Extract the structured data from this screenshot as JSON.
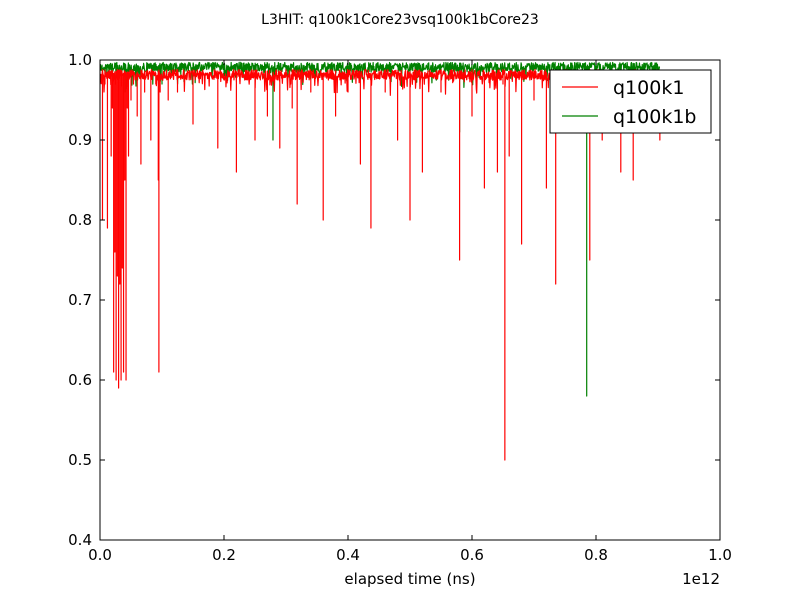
{
  "chart_data": {
    "type": "line",
    "title": "L3HIT: q100k1Core23vsq100k1bCore23",
    "xlabel": "elapsed time (ns)",
    "ylabel": "",
    "x_offset_label": "1e12",
    "xlim": [
      0.0,
      1.0
    ],
    "ylim": [
      0.4,
      1.0
    ],
    "x_ticks": [
      0.0,
      0.2,
      0.4,
      0.6,
      0.8,
      1.0
    ],
    "x_tick_labels": [
      "0.0",
      "0.2",
      "0.4",
      "0.6",
      "0.8",
      "1.0"
    ],
    "y_ticks": [
      0.4,
      0.5,
      0.6,
      0.7,
      0.8,
      0.9,
      1.0
    ],
    "y_tick_labels": [
      "0.4",
      "0.5",
      "0.6",
      "0.7",
      "0.8",
      "0.9",
      "1.0"
    ],
    "grid": false,
    "legend_position": "top-right",
    "colors": {
      "q100k1": "#ff0000",
      "q100k1b": "#008000"
    },
    "series": [
      {
        "name": "q100k1",
        "color": "#ff0000",
        "x_range": [
          0.0,
          0.903
        ],
        "baseline": [
          0.975,
          0.988
        ],
        "x": [
          0.0,
          0.004,
          0.008,
          0.012,
          0.015,
          0.018,
          0.02,
          0.022,
          0.024,
          0.026,
          0.028,
          0.03,
          0.032,
          0.034,
          0.036,
          0.038,
          0.04,
          0.042,
          0.044,
          0.046,
          0.05,
          0.054,
          0.06,
          0.066,
          0.072,
          0.082,
          0.09,
          0.094,
          0.095,
          0.097,
          0.11,
          0.125,
          0.15,
          0.19,
          0.22,
          0.25,
          0.27,
          0.29,
          0.31,
          0.318,
          0.34,
          0.36,
          0.38,
          0.4,
          0.42,
          0.437,
          0.46,
          0.48,
          0.5,
          0.52,
          0.55,
          0.58,
          0.6,
          0.62,
          0.641,
          0.65,
          0.653,
          0.66,
          0.68,
          0.7,
          0.72,
          0.735,
          0.75,
          0.77,
          0.79,
          0.81,
          0.84,
          0.86,
          0.88,
          0.9,
          0.903
        ],
        "y": [
          0.98,
          0.8,
          0.97,
          0.79,
          0.98,
          0.88,
          0.94,
          0.61,
          0.76,
          0.6,
          0.73,
          0.59,
          0.72,
          0.6,
          0.74,
          0.61,
          0.85,
          0.6,
          0.94,
          0.88,
          0.95,
          0.97,
          0.93,
          0.87,
          0.96,
          0.9,
          0.97,
          0.85,
          0.61,
          0.96,
          0.95,
          0.96,
          0.92,
          0.89,
          0.86,
          0.9,
          0.93,
          0.89,
          0.94,
          0.82,
          0.96,
          0.8,
          0.93,
          0.96,
          0.87,
          0.79,
          0.96,
          0.9,
          0.8,
          0.86,
          0.96,
          0.75,
          0.93,
          0.84,
          0.86,
          0.97,
          0.5,
          0.88,
          0.77,
          0.95,
          0.84,
          0.72,
          0.95,
          0.93,
          0.75,
          0.9,
          0.86,
          0.85,
          0.91,
          0.95,
          0.9
        ]
      },
      {
        "name": "q100k1b",
        "color": "#008000",
        "x_range": [
          0.0,
          0.903
        ],
        "baseline": [
          0.985,
          0.997
        ],
        "x": [
          0.0,
          0.01,
          0.02,
          0.04,
          0.06,
          0.1,
          0.15,
          0.2,
          0.25,
          0.279,
          0.28,
          0.3,
          0.35,
          0.4,
          0.45,
          0.5,
          0.55,
          0.58,
          0.6,
          0.65,
          0.7,
          0.75,
          0.785,
          0.787,
          0.8,
          0.85,
          0.9
        ],
        "y": [
          0.99,
          0.98,
          0.99,
          0.96,
          0.99,
          0.97,
          0.99,
          0.98,
          0.99,
          0.9,
          0.99,
          0.98,
          0.99,
          0.98,
          0.99,
          0.98,
          0.99,
          0.91,
          0.99,
          0.98,
          0.99,
          0.97,
          0.58,
          0.99,
          0.99,
          0.99,
          0.99
        ]
      }
    ]
  }
}
